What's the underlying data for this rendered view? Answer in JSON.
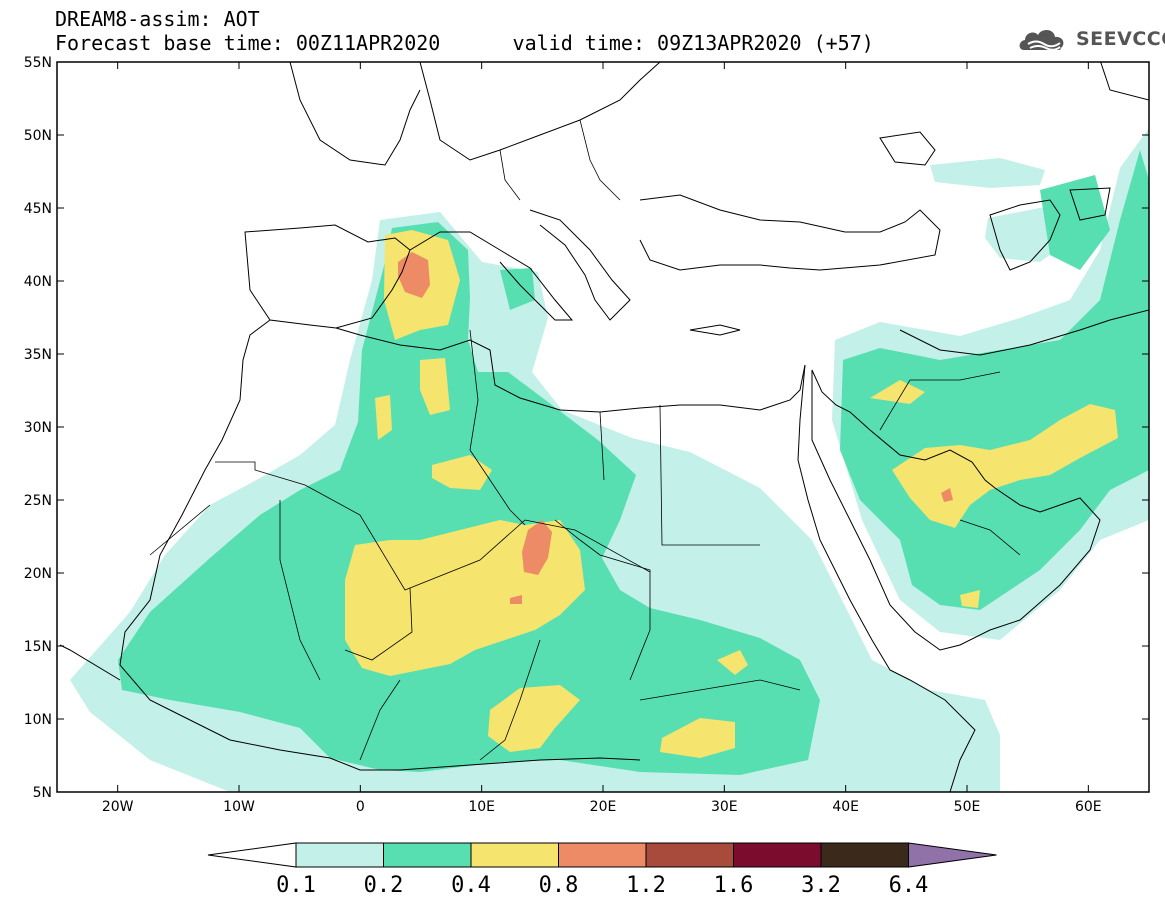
{
  "header": {
    "title_line1": "DREAM8-assim: AOT",
    "title_line2": "Forecast base time: 00Z11APR2020      valid time: 09Z13APR2020 (+57)",
    "logo_text": "SEEVCCC"
  },
  "map": {
    "lat_labels": [
      "55N",
      "50N",
      "45N",
      "40N",
      "35N",
      "30N",
      "25N",
      "20N",
      "15N",
      "10N",
      "5N"
    ],
    "lon_labels": [
      "20W",
      "10W",
      "0",
      "10E",
      "20E",
      "30E",
      "40E",
      "50E",
      "60E"
    ],
    "extent": {
      "lon": [
        -25,
        65
      ],
      "lat": [
        5,
        55
      ]
    },
    "variable": "Aerosol optical thickness (AOT)"
  },
  "legend": {
    "thresholds": [
      "0.1",
      "0.2",
      "0.4",
      "0.8",
      "1.2",
      "1.6",
      "3.2",
      "6.4"
    ],
    "colors": [
      "#ffffff",
      "#c3f0e8",
      "#57dfb2",
      "#f5e46e",
      "#ec8b65",
      "#a84a3c",
      "#7c0c2e",
      "#3b2a1c",
      "#9071a8"
    ]
  }
}
